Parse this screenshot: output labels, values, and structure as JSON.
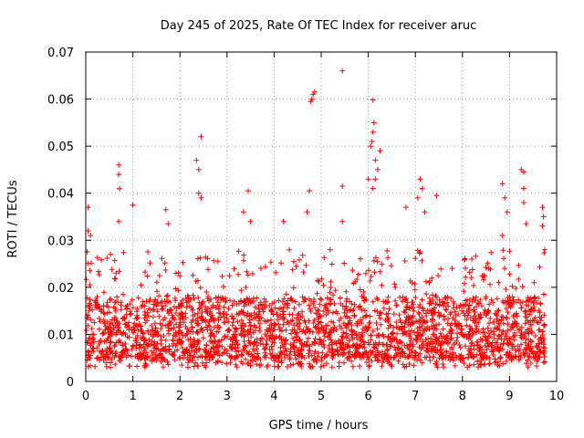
{
  "chart_data": {
    "type": "scatter",
    "title": "Day 245 of 2025, Rate Of TEC Index for receiver aruc",
    "xlabel": "GPS time / hours",
    "ylabel": "ROTI / TECUs",
    "xlim": [
      0,
      10
    ],
    "ylim": [
      0,
      0.07
    ],
    "xticks": [
      "0",
      "1",
      "2",
      "3",
      "4",
      "5",
      "6",
      "7",
      "8",
      "9",
      "10"
    ],
    "yticks": [
      "0",
      "0.01",
      "0.02",
      "0.03",
      "0.04",
      "0.05",
      "0.06",
      "0.07"
    ],
    "grid": true,
    "marker": "+",
    "color": "#ff0000",
    "x_range_of_data": [
      0,
      9.75
    ],
    "series": [
      {
        "name": "ROTI",
        "notable_points": [
          {
            "x": 0.05,
            "y": 0.037
          },
          {
            "x": 0.05,
            "y": 0.032
          },
          {
            "x": 0.1,
            "y": 0.031
          },
          {
            "x": 0.7,
            "y": 0.046
          },
          {
            "x": 0.7,
            "y": 0.044
          },
          {
            "x": 0.72,
            "y": 0.041
          },
          {
            "x": 0.7,
            "y": 0.034
          },
          {
            "x": 1.0,
            "y": 0.0375
          },
          {
            "x": 1.7,
            "y": 0.0365
          },
          {
            "x": 1.75,
            "y": 0.0335
          },
          {
            "x": 2.35,
            "y": 0.047
          },
          {
            "x": 2.4,
            "y": 0.045
          },
          {
            "x": 2.45,
            "y": 0.052
          },
          {
            "x": 2.4,
            "y": 0.04
          },
          {
            "x": 2.45,
            "y": 0.039
          },
          {
            "x": 3.35,
            "y": 0.036
          },
          {
            "x": 3.45,
            "y": 0.0405
          },
          {
            "x": 3.5,
            "y": 0.034
          },
          {
            "x": 4.2,
            "y": 0.034
          },
          {
            "x": 4.7,
            "y": 0.036
          },
          {
            "x": 4.75,
            "y": 0.0405
          },
          {
            "x": 4.78,
            "y": 0.0595
          },
          {
            "x": 4.8,
            "y": 0.06
          },
          {
            "x": 4.83,
            "y": 0.061
          },
          {
            "x": 4.86,
            "y": 0.0615
          },
          {
            "x": 5.45,
            "y": 0.066
          },
          {
            "x": 5.45,
            "y": 0.0415
          },
          {
            "x": 5.45,
            "y": 0.034
          },
          {
            "x": 6.0,
            "y": 0.043
          },
          {
            "x": 6.05,
            "y": 0.05
          },
          {
            "x": 6.08,
            "y": 0.051
          },
          {
            "x": 6.1,
            "y": 0.053
          },
          {
            "x": 6.12,
            "y": 0.055
          },
          {
            "x": 6.1,
            "y": 0.0598
          },
          {
            "x": 6.15,
            "y": 0.047
          },
          {
            "x": 6.2,
            "y": 0.045
          },
          {
            "x": 6.25,
            "y": 0.049
          },
          {
            "x": 6.15,
            "y": 0.043
          },
          {
            "x": 6.1,
            "y": 0.041
          },
          {
            "x": 6.8,
            "y": 0.037
          },
          {
            "x": 7.1,
            "y": 0.043
          },
          {
            "x": 7.15,
            "y": 0.041
          },
          {
            "x": 7.05,
            "y": 0.039
          },
          {
            "x": 7.2,
            "y": 0.036
          },
          {
            "x": 7.45,
            "y": 0.0395
          },
          {
            "x": 8.05,
            "y": 0.026
          },
          {
            "x": 8.2,
            "y": 0.026
          },
          {
            "x": 8.85,
            "y": 0.042
          },
          {
            "x": 8.9,
            "y": 0.039
          },
          {
            "x": 8.95,
            "y": 0.036
          },
          {
            "x": 8.85,
            "y": 0.031
          },
          {
            "x": 9.25,
            "y": 0.045
          },
          {
            "x": 9.3,
            "y": 0.0445
          },
          {
            "x": 9.3,
            "y": 0.041
          },
          {
            "x": 9.3,
            "y": 0.038
          },
          {
            "x": 9.35,
            "y": 0.0335
          },
          {
            "x": 9.7,
            "y": 0.037
          },
          {
            "x": 9.72,
            "y": 0.035
          },
          {
            "x": 9.7,
            "y": 0.033
          },
          {
            "x": 9.75,
            "y": 0.028
          }
        ],
        "bulk_band": {
          "y_min": 0.003,
          "y_typical_low": 0.005,
          "y_typical_high": 0.018,
          "y_upper": 0.028
        }
      }
    ]
  }
}
